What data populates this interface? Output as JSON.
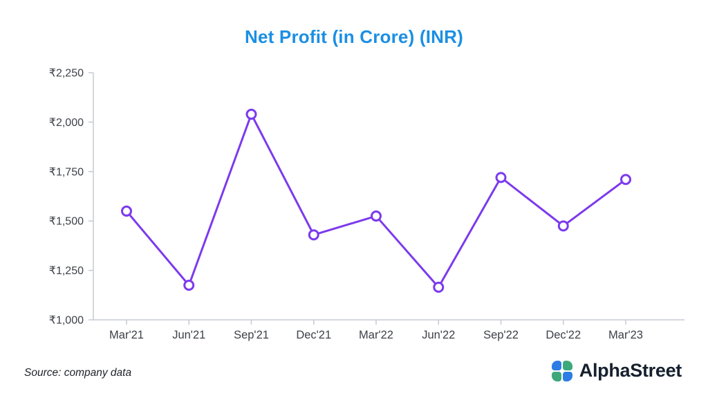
{
  "title": "Net Profit (in Crore) (INR)",
  "source_note": "Source: company data",
  "brand": {
    "name": "AlphaStreet"
  },
  "colors": {
    "title": "#1b8fe3",
    "line": "#7c3aed",
    "axis": "#c5cad3",
    "tick_label": "#3c4048",
    "brand_text": "#16202e",
    "brand_blue": "#2e7de4",
    "brand_green": "#3da87a"
  },
  "chart_data": {
    "type": "line",
    "title": "Net Profit (in Crore) (INR)",
    "xlabel": "",
    "ylabel": "Net Profit (in Crore, INR)",
    "categories": [
      "Mar'21",
      "Jun'21",
      "Sep'21",
      "Dec'21",
      "Mar'22",
      "Jun'22",
      "Sep'22",
      "Dec'22",
      "Mar'23"
    ],
    "series": [
      {
        "name": "Net Profit",
        "values": [
          1550,
          1175,
          2040,
          1430,
          1525,
          1165,
          1720,
          1475,
          1710
        ]
      }
    ],
    "ylim": [
      1000,
      2250
    ],
    "yticks": [
      1000,
      1250,
      1500,
      1750,
      2000,
      2250
    ],
    "ytick_labels": [
      "₹1,000",
      "₹1,250",
      "₹1,500",
      "₹1,750",
      "₹2,000",
      "₹2,250"
    ],
    "grid": false,
    "legend": "none",
    "currency": "INR"
  }
}
